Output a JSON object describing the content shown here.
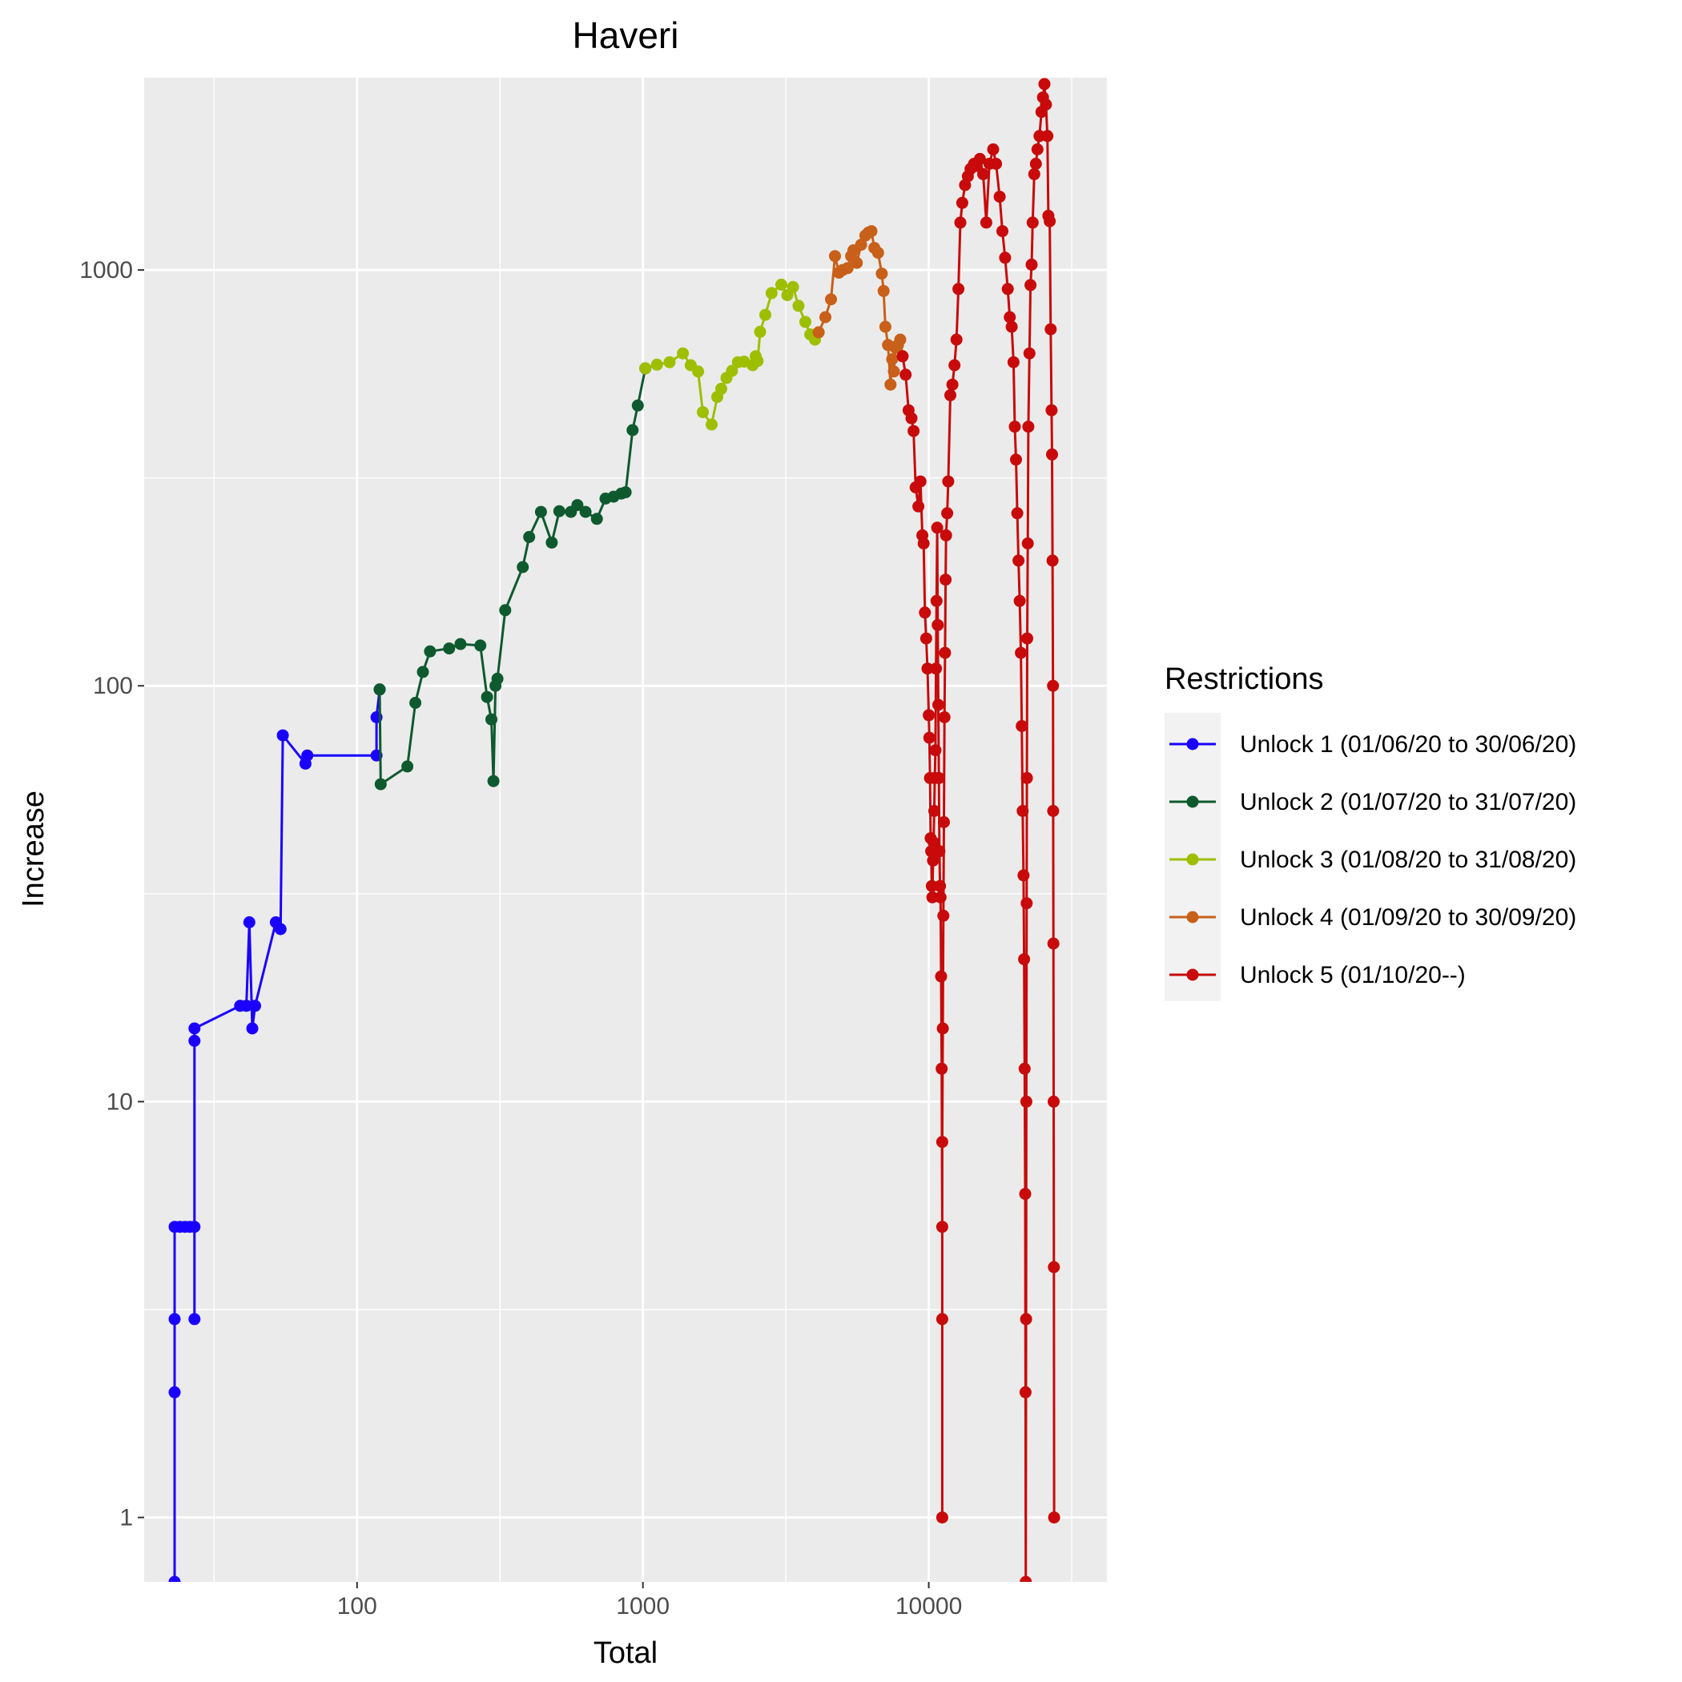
{
  "chart_data": {
    "type": "line",
    "title": "Haveri",
    "xlabel": "Total",
    "ylabel": "Increase",
    "x_scale": "log10",
    "y_scale": "log10",
    "xlim": [
      18,
      42000
    ],
    "ylim": [
      0.7,
      2900
    ],
    "x_ticks": [
      100,
      1000,
      10000
    ],
    "x_tick_labels": [
      "100",
      "1000",
      "10000"
    ],
    "y_ticks": [
      1,
      10,
      100,
      1000
    ],
    "y_tick_labels": [
      "1",
      "10",
      "100",
      "1000"
    ],
    "grid": true,
    "legend": {
      "title": "Restrictions",
      "position": "right"
    },
    "series": [
      {
        "name": "Unlock 1 (01/06/20 to 30/06/20)",
        "color": "#1a00ff",
        "points": [
          [
            23,
            0.7
          ],
          [
            23,
            2
          ],
          [
            23,
            3
          ],
          [
            23,
            5
          ],
          [
            24,
            5
          ],
          [
            25,
            5
          ],
          [
            26,
            5
          ],
          [
            27,
            5
          ],
          [
            27,
            3
          ],
          [
            27,
            14
          ],
          [
            27,
            15
          ],
          [
            39,
            17
          ],
          [
            41,
            17
          ],
          [
            42,
            27
          ],
          [
            43,
            15
          ],
          [
            44,
            17
          ],
          [
            52,
            27
          ],
          [
            54,
            26
          ],
          [
            55,
            76
          ],
          [
            66,
            65
          ],
          [
            67,
            68
          ],
          [
            117,
            68
          ],
          [
            117,
            84
          ],
          [
            120,
            98
          ]
        ]
      },
      {
        "name": "Unlock 2 (01/07/20 to 31/07/20)",
        "color": "#0e5a2e",
        "points": [
          [
            120,
            98
          ],
          [
            121,
            58
          ],
          [
            150,
            64
          ],
          [
            160,
            91
          ],
          [
            170,
            108
          ],
          [
            180,
            121
          ],
          [
            210,
            123
          ],
          [
            230,
            126
          ],
          [
            270,
            125
          ],
          [
            285,
            94
          ],
          [
            295,
            83
          ],
          [
            300,
            59
          ],
          [
            305,
            100
          ],
          [
            310,
            104
          ],
          [
            330,
            152
          ],
          [
            380,
            193
          ],
          [
            400,
            228
          ],
          [
            440,
            262
          ],
          [
            480,
            221
          ],
          [
            510,
            263
          ],
          [
            560,
            262
          ],
          [
            590,
            272
          ],
          [
            630,
            262
          ],
          [
            690,
            252
          ],
          [
            740,
            282
          ],
          [
            790,
            285
          ],
          [
            840,
            290
          ],
          [
            870,
            292
          ],
          [
            920,
            412
          ],
          [
            960,
            472
          ],
          [
            1020,
            580
          ]
        ]
      },
      {
        "name": "Unlock 3 (01/08/20 to 31/08/20)",
        "color": "#9dbf00",
        "points": [
          [
            1020,
            580
          ],
          [
            1120,
            592
          ],
          [
            1240,
            600
          ],
          [
            1380,
            630
          ],
          [
            1470,
            590
          ],
          [
            1560,
            570
          ],
          [
            1620,
            455
          ],
          [
            1740,
            425
          ],
          [
            1820,
            495
          ],
          [
            1880,
            518
          ],
          [
            1960,
            550
          ],
          [
            2050,
            572
          ],
          [
            2150,
            600
          ],
          [
            2260,
            602
          ],
          [
            2420,
            590
          ],
          [
            2480,
            620
          ],
          [
            2520,
            604
          ],
          [
            2570,
            710
          ],
          [
            2680,
            780
          ],
          [
            2820,
            880
          ],
          [
            3050,
            922
          ],
          [
            3200,
            870
          ],
          [
            3350,
            910
          ],
          [
            3500,
            820
          ],
          [
            3700,
            750
          ],
          [
            3850,
            700
          ],
          [
            4000,
            680
          ],
          [
            4120,
            708
          ]
        ]
      },
      {
        "name": "Unlock 4 (01/09/20 to 30/09/20)",
        "color": "#c8601a",
        "points": [
          [
            4120,
            708
          ],
          [
            4350,
            770
          ],
          [
            4550,
            850
          ],
          [
            4700,
            1080
          ],
          [
            4850,
            985
          ],
          [
            5000,
            1000
          ],
          [
            5200,
            1010
          ],
          [
            5350,
            1080
          ],
          [
            5450,
            1115
          ],
          [
            5600,
            1040
          ],
          [
            5800,
            1150
          ],
          [
            6000,
            1210
          ],
          [
            6150,
            1230
          ],
          [
            6300,
            1240
          ],
          [
            6450,
            1130
          ],
          [
            6650,
            1100
          ],
          [
            6850,
            980
          ],
          [
            6950,
            890
          ],
          [
            7050,
            730
          ],
          [
            7200,
            660
          ],
          [
            7350,
            530
          ],
          [
            7450,
            610
          ],
          [
            7550,
            570
          ],
          [
            7650,
            650
          ],
          [
            7800,
            660
          ],
          [
            7950,
            680
          ],
          [
            8100,
            620
          ]
        ]
      },
      {
        "name": "Unlock 5 (01/10/20--)",
        "color": "#c80a0a",
        "points": [
          [
            8100,
            620
          ],
          [
            8300,
            560
          ],
          [
            8500,
            460
          ],
          [
            8700,
            440
          ],
          [
            8850,
            410
          ],
          [
            9000,
            300
          ],
          [
            9200,
            270
          ],
          [
            9350,
            310
          ],
          [
            9500,
            230
          ],
          [
            9600,
            220
          ],
          [
            9700,
            150
          ],
          [
            9800,
            130
          ],
          [
            9900,
            110
          ],
          [
            10000,
            85
          ],
          [
            10050,
            75
          ],
          [
            10100,
            60
          ],
          [
            10150,
            43
          ],
          [
            10200,
            40
          ],
          [
            10250,
            33
          ],
          [
            10300,
            31
          ],
          [
            10350,
            38
          ],
          [
            10400,
            42
          ],
          [
            10450,
            50
          ],
          [
            10500,
            60
          ],
          [
            10550,
            70
          ],
          [
            10600,
            110
          ],
          [
            10650,
            160
          ],
          [
            10700,
            240
          ],
          [
            10750,
            140
          ],
          [
            10800,
            90
          ],
          [
            10850,
            60
          ],
          [
            10900,
            40
          ],
          [
            10950,
            33
          ],
          [
            11000,
            31
          ],
          [
            11050,
            20
          ],
          [
            11100,
            12
          ],
          [
            11150,
            5
          ],
          [
            11150,
            1
          ],
          [
            11150,
            3
          ],
          [
            11150,
            8
          ],
          [
            11200,
            15
          ],
          [
            11250,
            28
          ],
          [
            11300,
            47
          ],
          [
            11350,
            84
          ],
          [
            11400,
            120
          ],
          [
            11450,
            180
          ],
          [
            11500,
            230
          ],
          [
            11600,
            260
          ],
          [
            11700,
            310
          ],
          [
            11900,
            500
          ],
          [
            12100,
            530
          ],
          [
            12300,
            590
          ],
          [
            12500,
            680
          ],
          [
            12700,
            900
          ],
          [
            12900,
            1300
          ],
          [
            13100,
            1450
          ],
          [
            13400,
            1600
          ],
          [
            13700,
            1680
          ],
          [
            14000,
            1750
          ],
          [
            14400,
            1800
          ],
          [
            14700,
            1780
          ],
          [
            15100,
            1850
          ],
          [
            15500,
            1700
          ],
          [
            15900,
            1300
          ],
          [
            16300,
            1800
          ],
          [
            16800,
            1950
          ],
          [
            17200,
            1800
          ],
          [
            17700,
            1500
          ],
          [
            18100,
            1240
          ],
          [
            18500,
            1070
          ],
          [
            18900,
            900
          ],
          [
            19200,
            770
          ],
          [
            19500,
            730
          ],
          [
            19800,
            600
          ],
          [
            20000,
            420
          ],
          [
            20200,
            350
          ],
          [
            20400,
            260
          ],
          [
            20600,
            200
          ],
          [
            20800,
            160
          ],
          [
            21000,
            120
          ],
          [
            21150,
            80
          ],
          [
            21300,
            50
          ],
          [
            21450,
            35
          ],
          [
            21550,
            22
          ],
          [
            21650,
            12
          ],
          [
            21750,
            6
          ],
          [
            21800,
            2
          ],
          [
            21850,
            0.7
          ],
          [
            21900,
            3
          ],
          [
            21950,
            10
          ],
          [
            22000,
            30
          ],
          [
            22050,
            60
          ],
          [
            22100,
            130
          ],
          [
            22200,
            220
          ],
          [
            22300,
            420
          ],
          [
            22500,
            630
          ],
          [
            22700,
            920
          ],
          [
            22900,
            1030
          ],
          [
            23100,
            1300
          ],
          [
            23400,
            1700
          ],
          [
            23700,
            1800
          ],
          [
            24000,
            1950
          ],
          [
            24400,
            2100
          ],
          [
            24800,
            2400
          ],
          [
            25100,
            2600
          ],
          [
            25400,
            2800
          ],
          [
            25700,
            2500
          ],
          [
            26000,
            2100
          ],
          [
            26200,
            1350
          ],
          [
            26500,
            1310
          ],
          [
            26700,
            720
          ],
          [
            26900,
            460
          ],
          [
            27000,
            360
          ],
          [
            27100,
            200
          ],
          [
            27200,
            100
          ],
          [
            27250,
            50
          ],
          [
            27300,
            24
          ],
          [
            27350,
            10
          ],
          [
            27400,
            4
          ],
          [
            27450,
            1
          ]
        ]
      }
    ]
  }
}
